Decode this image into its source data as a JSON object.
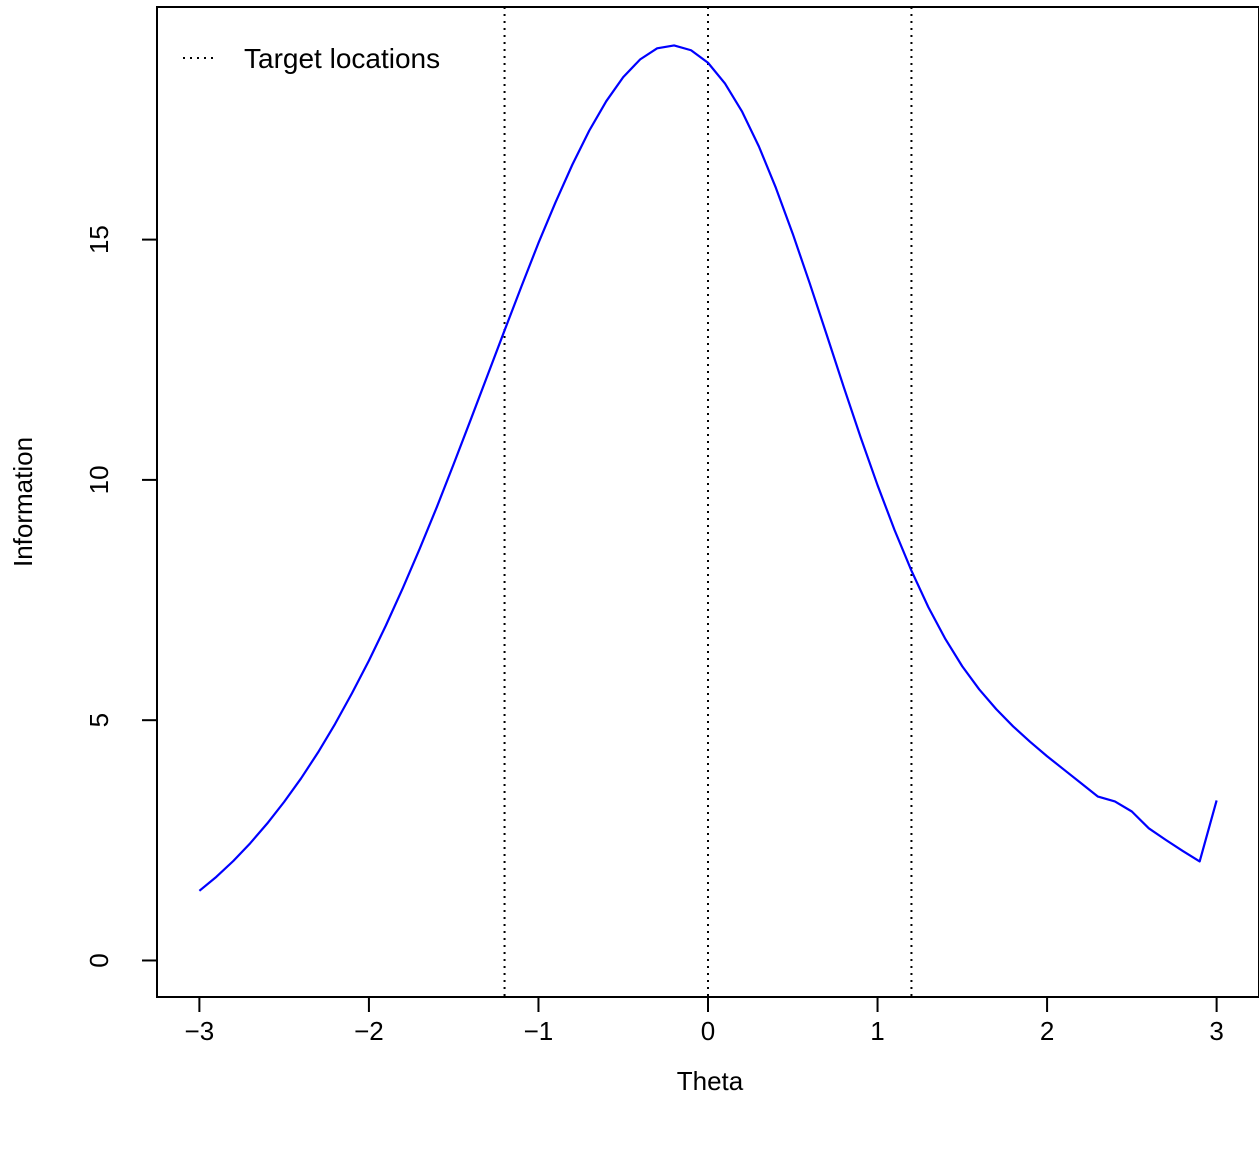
{
  "chart_data": {
    "type": "line",
    "title": "",
    "xlabel": "Theta",
    "ylabel": "Information",
    "xlim": [
      -3.25,
      3.25
    ],
    "ylim": [
      -0.76,
      19.84
    ],
    "x_ticks": [
      -3,
      -2,
      -1,
      0,
      1,
      2,
      3
    ],
    "x_tick_labels": [
      "−3",
      "−2",
      "−1",
      "0",
      "1",
      "2",
      "3"
    ],
    "y_ticks": [
      0,
      5,
      10,
      15
    ],
    "y_tick_labels": [
      "0",
      "5",
      "10",
      "15"
    ],
    "grid": false,
    "legend": {
      "position": "top-left",
      "entries": [
        {
          "label": "Target locations",
          "style": "dotted",
          "color": "#000000"
        }
      ]
    },
    "series": [
      {
        "color": "#0000ff",
        "x": [
          -3.0,
          -2.9,
          -2.8,
          -2.7,
          -2.6,
          -2.5,
          -2.4,
          -2.3,
          -2.2,
          -2.1,
          -2.0,
          -1.9,
          -1.8,
          -1.7,
          -1.6,
          -1.5,
          -1.4,
          -1.3,
          -1.2,
          -1.1,
          -1.0,
          -0.9,
          -0.8,
          -0.7,
          -0.6,
          -0.5,
          -0.4,
          -0.3,
          -0.2,
          -0.1,
          0.0,
          0.1,
          0.2,
          0.3,
          0.4,
          0.5,
          0.6,
          0.7,
          0.8,
          0.9,
          1.0,
          1.1,
          1.2,
          1.3,
          1.4,
          1.5,
          1.6,
          1.7,
          1.8,
          1.9,
          2.0,
          2.1,
          2.2,
          2.3,
          2.4,
          2.5,
          2.6,
          2.7,
          2.8,
          2.9,
          3.0
        ],
        "y": [
          1.45,
          1.74,
          2.07,
          2.44,
          2.85,
          3.3,
          3.79,
          4.33,
          4.92,
          5.56,
          6.24,
          6.97,
          7.75,
          8.57,
          9.43,
          10.33,
          11.25,
          12.18,
          13.11,
          14.03,
          14.93,
          15.77,
          16.56,
          17.27,
          17.88,
          18.38,
          18.75,
          18.98,
          19.04,
          18.94,
          18.68,
          18.25,
          17.67,
          16.94,
          16.08,
          15.12,
          14.09,
          13.02,
          11.94,
          10.89,
          9.89,
          8.96,
          8.11,
          7.35,
          6.69,
          6.12,
          5.64,
          5.23,
          4.87,
          4.55,
          4.25,
          3.97,
          3.69,
          3.41,
          3.31,
          3.1,
          2.75,
          2.51,
          2.28,
          2.06,
          3.33
        ]
      }
    ],
    "vlines": [
      -1.2,
      0,
      1.2
    ]
  }
}
